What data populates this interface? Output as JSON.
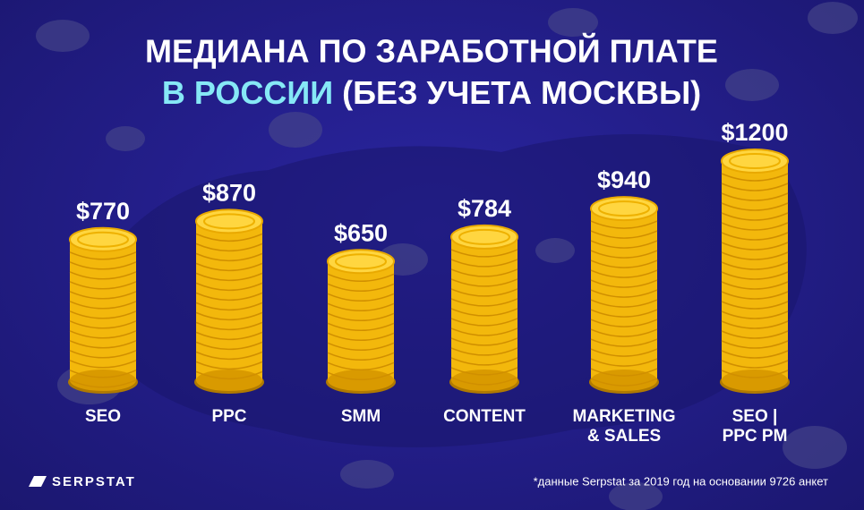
{
  "chart_data": {
    "type": "bar",
    "title": "МЕДИАНА ПО ЗАРАБОТНОЙ ПЛАТЕ",
    "title_highlight": "В РОССИИ",
    "subtitle": "(БЕЗ УЧЕТА МОСКВЫ)",
    "categories": [
      "SEO",
      "PPC",
      "SMM",
      "CONTENT",
      "MARKETING & SALES",
      "SEO | PPC PM"
    ],
    "values": [
      770,
      870,
      650,
      784,
      940,
      1200
    ],
    "value_labels": [
      "$770",
      "$870",
      "$650",
      "$784",
      "$940",
      "$1200"
    ],
    "color": "#f3b80c",
    "note": "*данные Serpstat за 2019 год на основании 9726 анкет",
    "brand": "SERPSTAT"
  }
}
